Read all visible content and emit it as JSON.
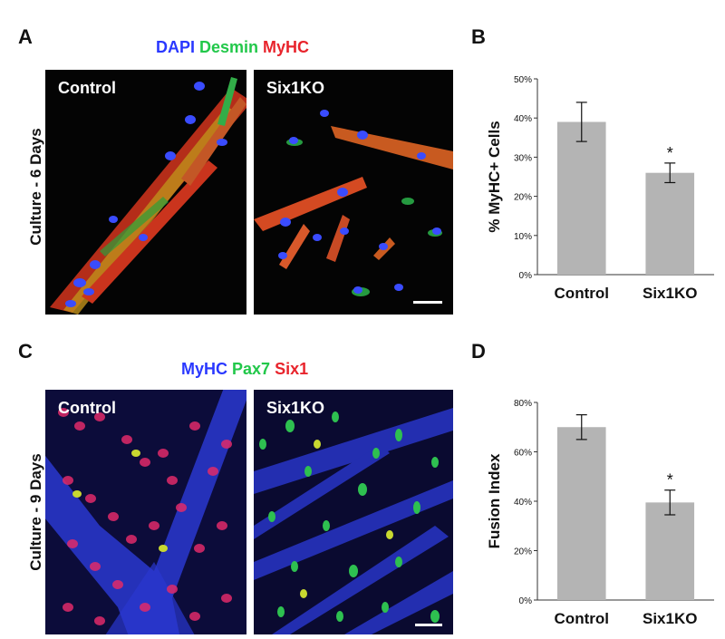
{
  "colors": {
    "blue": "#2a38ff",
    "green": "#22c84a",
    "red": "#e8242c"
  },
  "panels": {
    "A": {
      "letter": "A",
      "stains": [
        "DAPI",
        "Desmin",
        "MyHC"
      ],
      "row_label": "Culture - 6 Days",
      "left_label": "Control",
      "right_label": "Six1KO"
    },
    "C": {
      "letter": "C",
      "stains": [
        "MyHC",
        "Pax7",
        "Six1"
      ],
      "row_label": "Culture - 9 Days",
      "left_label": "Control",
      "right_label": "Six1KO"
    },
    "B": {
      "letter": "B"
    },
    "D": {
      "letter": "D"
    }
  },
  "chart_data": [
    {
      "panel": "B",
      "type": "bar",
      "categories": [
        "Control",
        "Six1KO"
      ],
      "values": [
        39,
        26
      ],
      "errors": [
        5,
        2.5
      ],
      "significance": [
        "",
        "*"
      ],
      "ylabel": "% MyHC+ Cells",
      "ylim": [
        0,
        50
      ],
      "yticks": [
        "0%",
        "10%",
        "20%",
        "30%",
        "40%",
        "50%"
      ],
      "bar_color": "#b4b4b4",
      "grid": false
    },
    {
      "panel": "D",
      "type": "bar",
      "categories": [
        "Control",
        "Six1KO"
      ],
      "values": [
        70,
        39.5
      ],
      "errors": [
        5,
        5
      ],
      "significance": [
        "",
        "*"
      ],
      "ylabel": "Fusion Index",
      "ylim": [
        0,
        80
      ],
      "yticks": [
        "0%",
        "20%",
        "40%",
        "60%",
        "80%"
      ],
      "bar_color": "#b4b4b4",
      "grid": false
    }
  ]
}
